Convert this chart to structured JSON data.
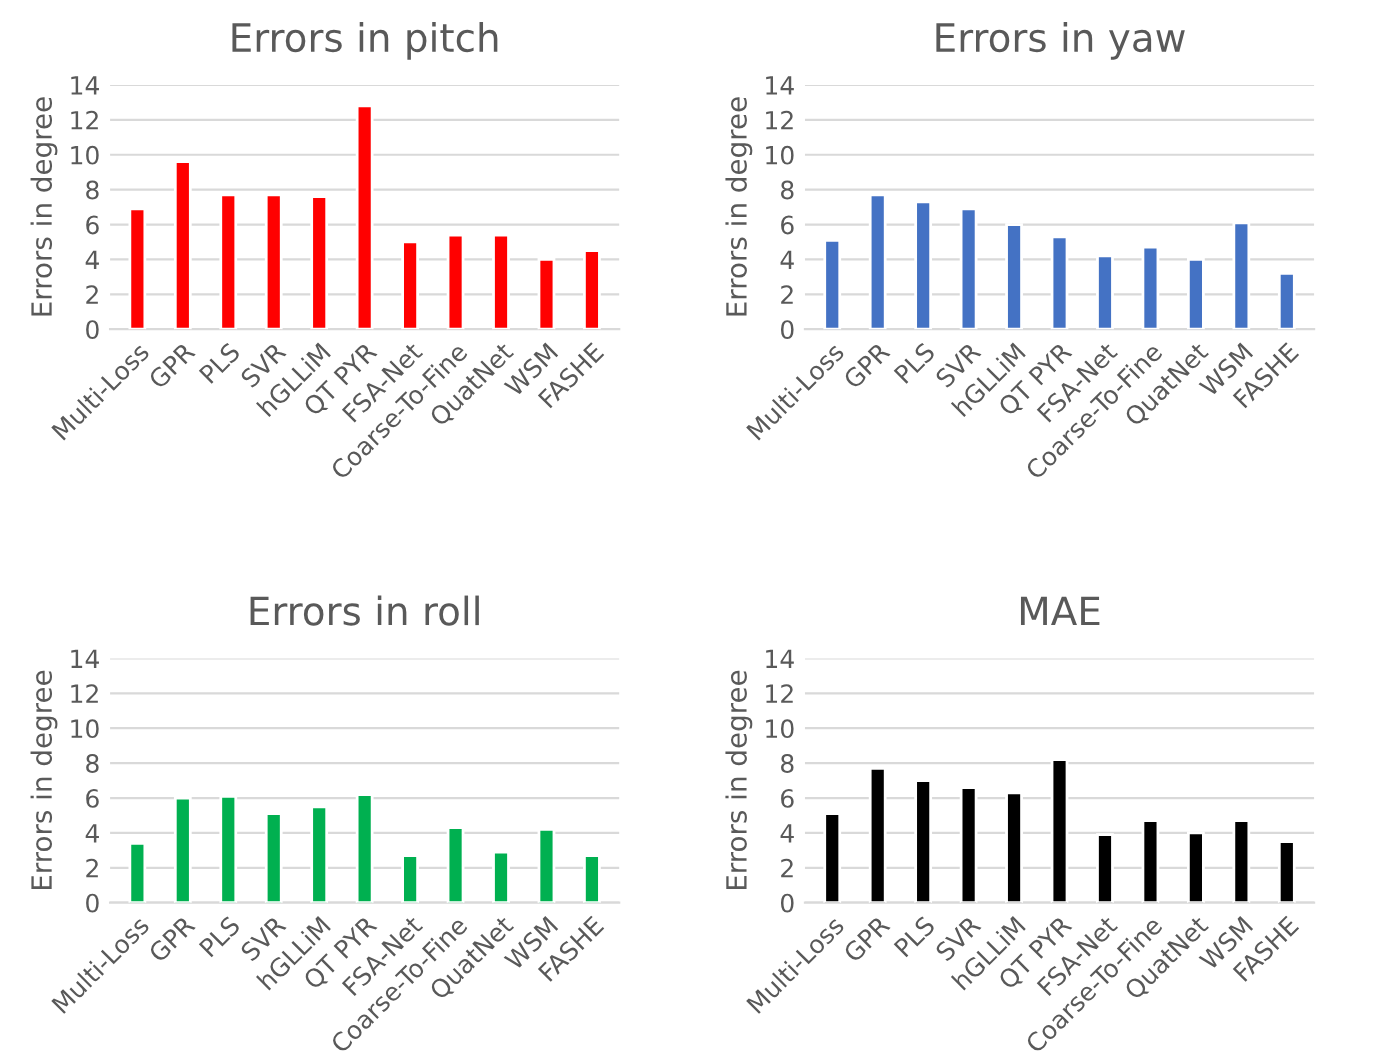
{
  "chart_data": [
    {
      "type": "bar",
      "title": "Errors in pitch",
      "ylabel": "Errors in degree",
      "categories": [
        "Multi-Loss",
        "GPR",
        "PLS",
        "SVR",
        "hGLLiM",
        "QT PYR",
        "FSA-Net",
        "Coarse-To-Fine",
        "QuatNet",
        "WSM",
        "FASHE"
      ],
      "values": [
        6.9,
        9.6,
        7.7,
        7.7,
        7.6,
        12.8,
        5.0,
        5.4,
        5.4,
        4.0,
        4.5
      ],
      "color": "#ff0000",
      "ylim": [
        0,
        14
      ],
      "yticks": [
        0,
        2,
        4,
        6,
        8,
        10,
        12,
        14
      ],
      "grid": "y"
    },
    {
      "type": "bar",
      "title": "Errors in yaw",
      "ylabel": "Errors in degree",
      "categories": [
        "Multi-Loss",
        "GPR",
        "PLS",
        "SVR",
        "hGLLiM",
        "QT PYR",
        "FSA-Net",
        "Coarse-To-Fine",
        "QuatNet",
        "WSM",
        "FASHE"
      ],
      "values": [
        5.1,
        7.7,
        7.3,
        6.9,
        6.0,
        5.3,
        4.2,
        4.7,
        4.0,
        6.1,
        3.2
      ],
      "color": "#4472c4",
      "ylim": [
        0,
        14
      ],
      "yticks": [
        0,
        2,
        4,
        6,
        8,
        10,
        12,
        14
      ],
      "grid": "y"
    },
    {
      "type": "bar",
      "title": "Errors in roll",
      "ylabel": "Errors in degree",
      "categories": [
        "Multi-Loss",
        "GPR",
        "PLS",
        "SVR",
        "hGLLiM",
        "QT PYR",
        "FSA-Net",
        "Coarse-To-Fine",
        "QuatNet",
        "WSM",
        "FASHE"
      ],
      "values": [
        3.4,
        6.0,
        6.1,
        5.1,
        5.5,
        6.2,
        2.7,
        4.3,
        2.9,
        4.2,
        2.7
      ],
      "color": "#00b050",
      "ylim": [
        0,
        14
      ],
      "yticks": [
        0,
        2,
        4,
        6,
        8,
        10,
        12,
        14
      ],
      "grid": "y"
    },
    {
      "type": "bar",
      "title": "MAE",
      "ylabel": "Errors in degree",
      "categories": [
        "Multi-Loss",
        "GPR",
        "PLS",
        "SVR",
        "hGLLiM",
        "QT PYR",
        "FSA-Net",
        "Coarse-To-Fine",
        "QuatNet",
        "WSM",
        "FASHE"
      ],
      "values": [
        5.1,
        7.7,
        7.0,
        6.6,
        6.3,
        8.2,
        3.9,
        4.7,
        4.0,
        4.7,
        3.5
      ],
      "color": "#000000",
      "ylim": [
        0,
        14
      ],
      "yticks": [
        0,
        2,
        4,
        6,
        8,
        10,
        12,
        14
      ],
      "grid": "y"
    }
  ]
}
